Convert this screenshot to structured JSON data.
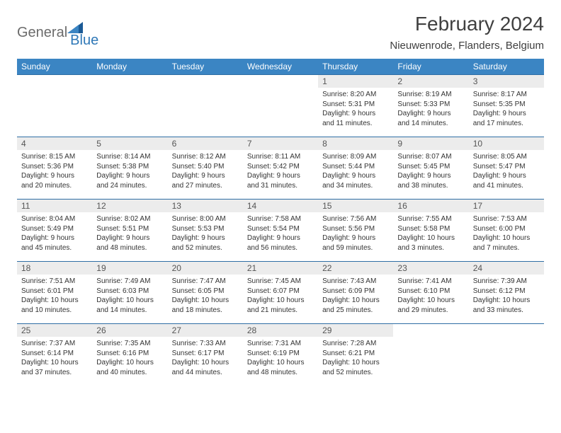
{
  "logo": {
    "part1": "General",
    "part2": "Blue"
  },
  "title": "February 2024",
  "location": "Nieuwenrode, Flanders, Belgium",
  "colors": {
    "header_bg": "#3b85c3",
    "header_text": "#ffffff",
    "border": "#2f6ea5",
    "daynum_bg": "#ececec",
    "logo_gray": "#6b6b6b",
    "logo_blue": "#2f78b7"
  },
  "weekdays": [
    "Sunday",
    "Monday",
    "Tuesday",
    "Wednesday",
    "Thursday",
    "Friday",
    "Saturday"
  ],
  "weeks": [
    [
      {
        "empty": true
      },
      {
        "empty": true
      },
      {
        "empty": true
      },
      {
        "empty": true
      },
      {
        "day": "1",
        "sunrise": "Sunrise: 8:20 AM",
        "sunset": "Sunset: 5:31 PM",
        "daylight1": "Daylight: 9 hours",
        "daylight2": "and 11 minutes."
      },
      {
        "day": "2",
        "sunrise": "Sunrise: 8:19 AM",
        "sunset": "Sunset: 5:33 PM",
        "daylight1": "Daylight: 9 hours",
        "daylight2": "and 14 minutes."
      },
      {
        "day": "3",
        "sunrise": "Sunrise: 8:17 AM",
        "sunset": "Sunset: 5:35 PM",
        "daylight1": "Daylight: 9 hours",
        "daylight2": "and 17 minutes."
      }
    ],
    [
      {
        "day": "4",
        "sunrise": "Sunrise: 8:15 AM",
        "sunset": "Sunset: 5:36 PM",
        "daylight1": "Daylight: 9 hours",
        "daylight2": "and 20 minutes."
      },
      {
        "day": "5",
        "sunrise": "Sunrise: 8:14 AM",
        "sunset": "Sunset: 5:38 PM",
        "daylight1": "Daylight: 9 hours",
        "daylight2": "and 24 minutes."
      },
      {
        "day": "6",
        "sunrise": "Sunrise: 8:12 AM",
        "sunset": "Sunset: 5:40 PM",
        "daylight1": "Daylight: 9 hours",
        "daylight2": "and 27 minutes."
      },
      {
        "day": "7",
        "sunrise": "Sunrise: 8:11 AM",
        "sunset": "Sunset: 5:42 PM",
        "daylight1": "Daylight: 9 hours",
        "daylight2": "and 31 minutes."
      },
      {
        "day": "8",
        "sunrise": "Sunrise: 8:09 AM",
        "sunset": "Sunset: 5:44 PM",
        "daylight1": "Daylight: 9 hours",
        "daylight2": "and 34 minutes."
      },
      {
        "day": "9",
        "sunrise": "Sunrise: 8:07 AM",
        "sunset": "Sunset: 5:45 PM",
        "daylight1": "Daylight: 9 hours",
        "daylight2": "and 38 minutes."
      },
      {
        "day": "10",
        "sunrise": "Sunrise: 8:05 AM",
        "sunset": "Sunset: 5:47 PM",
        "daylight1": "Daylight: 9 hours",
        "daylight2": "and 41 minutes."
      }
    ],
    [
      {
        "day": "11",
        "sunrise": "Sunrise: 8:04 AM",
        "sunset": "Sunset: 5:49 PM",
        "daylight1": "Daylight: 9 hours",
        "daylight2": "and 45 minutes."
      },
      {
        "day": "12",
        "sunrise": "Sunrise: 8:02 AM",
        "sunset": "Sunset: 5:51 PM",
        "daylight1": "Daylight: 9 hours",
        "daylight2": "and 48 minutes."
      },
      {
        "day": "13",
        "sunrise": "Sunrise: 8:00 AM",
        "sunset": "Sunset: 5:53 PM",
        "daylight1": "Daylight: 9 hours",
        "daylight2": "and 52 minutes."
      },
      {
        "day": "14",
        "sunrise": "Sunrise: 7:58 AM",
        "sunset": "Sunset: 5:54 PM",
        "daylight1": "Daylight: 9 hours",
        "daylight2": "and 56 minutes."
      },
      {
        "day": "15",
        "sunrise": "Sunrise: 7:56 AM",
        "sunset": "Sunset: 5:56 PM",
        "daylight1": "Daylight: 9 hours",
        "daylight2": "and 59 minutes."
      },
      {
        "day": "16",
        "sunrise": "Sunrise: 7:55 AM",
        "sunset": "Sunset: 5:58 PM",
        "daylight1": "Daylight: 10 hours",
        "daylight2": "and 3 minutes."
      },
      {
        "day": "17",
        "sunrise": "Sunrise: 7:53 AM",
        "sunset": "Sunset: 6:00 PM",
        "daylight1": "Daylight: 10 hours",
        "daylight2": "and 7 minutes."
      }
    ],
    [
      {
        "day": "18",
        "sunrise": "Sunrise: 7:51 AM",
        "sunset": "Sunset: 6:01 PM",
        "daylight1": "Daylight: 10 hours",
        "daylight2": "and 10 minutes."
      },
      {
        "day": "19",
        "sunrise": "Sunrise: 7:49 AM",
        "sunset": "Sunset: 6:03 PM",
        "daylight1": "Daylight: 10 hours",
        "daylight2": "and 14 minutes."
      },
      {
        "day": "20",
        "sunrise": "Sunrise: 7:47 AM",
        "sunset": "Sunset: 6:05 PM",
        "daylight1": "Daylight: 10 hours",
        "daylight2": "and 18 minutes."
      },
      {
        "day": "21",
        "sunrise": "Sunrise: 7:45 AM",
        "sunset": "Sunset: 6:07 PM",
        "daylight1": "Daylight: 10 hours",
        "daylight2": "and 21 minutes."
      },
      {
        "day": "22",
        "sunrise": "Sunrise: 7:43 AM",
        "sunset": "Sunset: 6:09 PM",
        "daylight1": "Daylight: 10 hours",
        "daylight2": "and 25 minutes."
      },
      {
        "day": "23",
        "sunrise": "Sunrise: 7:41 AM",
        "sunset": "Sunset: 6:10 PM",
        "daylight1": "Daylight: 10 hours",
        "daylight2": "and 29 minutes."
      },
      {
        "day": "24",
        "sunrise": "Sunrise: 7:39 AM",
        "sunset": "Sunset: 6:12 PM",
        "daylight1": "Daylight: 10 hours",
        "daylight2": "and 33 minutes."
      }
    ],
    [
      {
        "day": "25",
        "sunrise": "Sunrise: 7:37 AM",
        "sunset": "Sunset: 6:14 PM",
        "daylight1": "Daylight: 10 hours",
        "daylight2": "and 37 minutes."
      },
      {
        "day": "26",
        "sunrise": "Sunrise: 7:35 AM",
        "sunset": "Sunset: 6:16 PM",
        "daylight1": "Daylight: 10 hours",
        "daylight2": "and 40 minutes."
      },
      {
        "day": "27",
        "sunrise": "Sunrise: 7:33 AM",
        "sunset": "Sunset: 6:17 PM",
        "daylight1": "Daylight: 10 hours",
        "daylight2": "and 44 minutes."
      },
      {
        "day": "28",
        "sunrise": "Sunrise: 7:31 AM",
        "sunset": "Sunset: 6:19 PM",
        "daylight1": "Daylight: 10 hours",
        "daylight2": "and 48 minutes."
      },
      {
        "day": "29",
        "sunrise": "Sunrise: 7:28 AM",
        "sunset": "Sunset: 6:21 PM",
        "daylight1": "Daylight: 10 hours",
        "daylight2": "and 52 minutes."
      },
      {
        "empty": true
      },
      {
        "empty": true
      }
    ]
  ]
}
